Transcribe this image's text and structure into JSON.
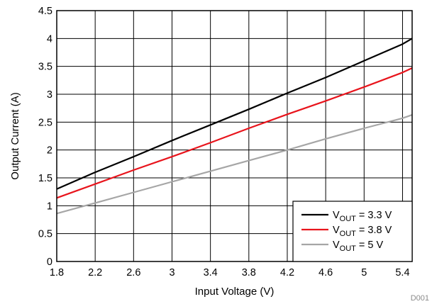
{
  "chart_data": {
    "type": "line",
    "title": "",
    "xlabel": "Input Voltage (V)",
    "ylabel": "Output Current (A)",
    "xlim": [
      1.8,
      5.5
    ],
    "ylim": [
      0,
      4.5
    ],
    "x_ticks": [
      1.8,
      2.2,
      2.6,
      3,
      3.4,
      3.8,
      4.2,
      4.6,
      5,
      5.4
    ],
    "y_ticks": [
      0,
      0.5,
      1,
      1.5,
      2,
      2.5,
      3,
      3.5,
      4,
      4.5
    ],
    "grid": true,
    "legend_position": "bottom-right",
    "footnote": "D001",
    "series": [
      {
        "name": "VOUT = 3.3 V",
        "label_main": "V",
        "label_sub": "OUT",
        "label_rest": " = 3.3 V",
        "color": "#000000",
        "x": [
          1.8,
          2.2,
          2.6,
          3.0,
          3.4,
          3.8,
          4.2,
          4.6,
          5.0,
          5.4,
          5.5
        ],
        "y": [
          1.3,
          1.6,
          1.88,
          2.17,
          2.45,
          2.73,
          3.02,
          3.3,
          3.6,
          3.9,
          4.0
        ]
      },
      {
        "name": "VOUT = 3.8 V",
        "label_main": "V",
        "label_sub": "OUT",
        "label_rest": " = 3.8 V",
        "color": "#e8141c",
        "x": [
          1.8,
          2.2,
          2.6,
          3.0,
          3.4,
          3.8,
          4.2,
          4.6,
          5.0,
          5.4,
          5.5
        ],
        "y": [
          1.14,
          1.39,
          1.64,
          1.88,
          2.13,
          2.39,
          2.64,
          2.88,
          3.13,
          3.39,
          3.47
        ]
      },
      {
        "name": "VOUT = 5 V",
        "label_main": "V",
        "label_sub": "OUT",
        "label_rest": " = 5 V",
        "color": "#a6a6a6",
        "x": [
          1.8,
          2.2,
          2.6,
          3.0,
          3.4,
          3.8,
          4.2,
          4.6,
          5.0,
          5.4,
          5.5
        ],
        "y": [
          0.86,
          1.05,
          1.24,
          1.43,
          1.62,
          1.81,
          2.0,
          2.2,
          2.39,
          2.57,
          2.63
        ]
      }
    ]
  }
}
